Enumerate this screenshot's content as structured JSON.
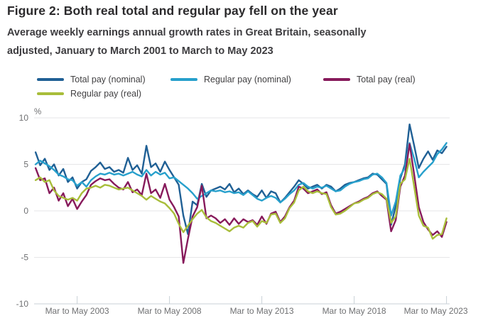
{
  "header": {
    "title": "Figure 2: Both real total and regular pay fell on the year",
    "subtitle_lines": [
      "Average weekly earnings annual growth rates in Great Britain, seasonally",
      "adjusted, January to March 2001 to March to May 2023"
    ]
  },
  "legend": {
    "items": [
      {
        "label": "Total pay (nominal)",
        "color": "#206095"
      },
      {
        "label": "Regular pay (nominal)",
        "color": "#27a0cc"
      },
      {
        "label": "Total pay (real)",
        "color": "#871a5b"
      },
      {
        "label": "Regular pay (real)",
        "color": "#a8bd3a"
      }
    ]
  },
  "chart_data": {
    "type": "line",
    "unit_label": "%",
    "grid": true,
    "legend_position": "top",
    "colors": {
      "gridline": "#e6e6e7",
      "axis": "#c9d1d7",
      "tick_text": "#6f7072"
    },
    "x_axis": {
      "tick_labels": [
        "Mar to May 2003",
        "Mar to May 2008",
        "Mar to May 2013",
        "Mar to May 2018",
        "Mar to May 2023"
      ],
      "tick_years": [
        2003.33,
        2008.33,
        2013.33,
        2018.33,
        2023.33
      ],
      "range": [
        2001.0,
        2023.5
      ]
    },
    "y_axis": {
      "ticks": [
        10,
        5,
        0,
        -5,
        -10
      ],
      "range": [
        -10,
        10
      ]
    },
    "x_start": 2001.08,
    "x_step": 0.25,
    "series": [
      {
        "name": "Total pay (nominal)",
        "color": "#206095",
        "values": [
          6.3,
          4.9,
          5.6,
          4.4,
          5.0,
          3.8,
          4.5,
          3.1,
          3.6,
          2.4,
          3.1,
          3.4,
          4.3,
          4.7,
          5.2,
          4.5,
          4.7,
          4.2,
          4.4,
          4.1,
          5.7,
          4.4,
          4.9,
          4.0,
          7.0,
          4.7,
          5.1,
          4.2,
          5.3,
          4.4,
          3.6,
          2.8,
          -0.5,
          -2.5,
          1.0,
          0.6,
          2.9,
          1.5,
          2.2,
          2.4,
          2.6,
          2.3,
          2.9,
          2.0,
          2.4,
          1.8,
          2.2,
          1.8,
          1.5,
          2.2,
          1.4,
          2.1,
          1.9,
          0.9,
          1.4,
          2.0,
          2.6,
          3.3,
          2.9,
          2.4,
          2.6,
          2.8,
          2.4,
          2.8,
          2.6,
          2.1,
          2.4,
          2.8,
          3.0,
          3.1,
          3.3,
          3.5,
          3.6,
          4.0,
          3.9,
          3.4,
          2.9,
          -1.5,
          0.5,
          3.5,
          5.0,
          9.3,
          7.0,
          4.6,
          5.6,
          6.4,
          5.5,
          6.5,
          6.2,
          6.9
        ]
      },
      {
        "name": "Regular pay (nominal)",
        "color": "#27a0cc",
        "values": [
          5.0,
          5.4,
          5.1,
          4.8,
          4.4,
          3.9,
          3.7,
          3.4,
          3.3,
          2.7,
          3.1,
          2.6,
          3.3,
          3.7,
          4.0,
          3.9,
          4.1,
          3.9,
          4.0,
          3.8,
          4.0,
          4.2,
          3.9,
          3.7,
          4.4,
          3.8,
          4.2,
          3.9,
          4.1,
          3.5,
          3.6,
          3.2,
          2.8,
          2.4,
          1.9,
          1.3,
          1.6,
          1.9,
          2.2,
          2.1,
          2.2,
          2.0,
          2.1,
          1.9,
          2.0,
          1.7,
          2.1,
          1.7,
          1.3,
          1.1,
          1.4,
          1.6,
          1.4,
          0.9,
          1.3,
          1.8,
          2.2,
          2.8,
          3.0,
          2.6,
          2.4,
          2.6,
          2.5,
          2.7,
          2.4,
          2.1,
          2.2,
          2.6,
          2.9,
          3.1,
          3.2,
          3.4,
          3.5,
          3.9,
          4.0,
          3.6,
          3.0,
          -0.5,
          1.0,
          3.8,
          4.6,
          7.3,
          5.6,
          3.6,
          4.2,
          4.7,
          5.2,
          6.1,
          6.6,
          7.3
        ]
      },
      {
        "name": "Total pay (real)",
        "color": "#871a5b",
        "values": [
          4.6,
          3.3,
          3.5,
          1.9,
          2.5,
          1.1,
          1.9,
          0.5,
          1.3,
          0.2,
          1.0,
          1.7,
          2.8,
          3.2,
          3.5,
          3.3,
          3.4,
          2.9,
          2.5,
          2.3,
          3.1,
          2.0,
          2.3,
          1.7,
          4.0,
          1.9,
          2.3,
          1.4,
          2.9,
          1.2,
          0.4,
          -0.6,
          -5.6,
          -3.0,
          -0.6,
          0.4,
          2.7,
          -0.8,
          -0.5,
          -0.8,
          -1.3,
          -0.9,
          -1.5,
          -0.8,
          -1.4,
          -0.9,
          -1.2,
          -1.0,
          -1.5,
          -0.6,
          -1.4,
          -0.3,
          -0.1,
          -1.2,
          -0.6,
          0.4,
          1.1,
          2.6,
          2.4,
          1.9,
          2.1,
          2.3,
          1.8,
          2.0,
          0.6,
          -0.3,
          -0.1,
          0.2,
          0.5,
          0.8,
          1.0,
          1.3,
          1.5,
          1.9,
          2.1,
          1.6,
          1.2,
          -2.2,
          -1.0,
          2.6,
          3.8,
          7.2,
          3.9,
          0.4,
          -1.2,
          -2.0,
          -2.6,
          -2.2,
          -2.8,
          -1.2
        ]
      },
      {
        "name": "Regular pay (real)",
        "color": "#a8bd3a",
        "values": [
          3.3,
          3.6,
          3.1,
          3.3,
          2.2,
          1.6,
          1.4,
          1.2,
          1.4,
          1.1,
          1.9,
          2.4,
          2.5,
          2.7,
          2.5,
          2.8,
          2.7,
          2.5,
          2.3,
          2.4,
          2.5,
          2.2,
          1.9,
          1.6,
          1.2,
          1.6,
          1.3,
          1.0,
          0.8,
          0.3,
          -0.3,
          -1.4,
          -2.3,
          -1.6,
          -0.9,
          -0.3,
          0.1,
          -0.7,
          -1.1,
          -1.3,
          -1.6,
          -1.9,
          -2.2,
          -1.8,
          -1.6,
          -1.8,
          -1.3,
          -1.1,
          -1.7,
          -1.1,
          -1.3,
          -0.4,
          -0.3,
          -1.3,
          -0.8,
          0.3,
          0.9,
          2.2,
          2.6,
          2.1,
          1.9,
          2.1,
          1.9,
          1.8,
          0.4,
          -0.4,
          -0.3,
          0.0,
          0.4,
          0.8,
          0.9,
          1.2,
          1.4,
          1.8,
          2.0,
          1.8,
          1.3,
          -1.3,
          -0.6,
          2.9,
          3.4,
          5.6,
          2.6,
          -0.5,
          -1.6,
          -1.8,
          -3.0,
          -2.6,
          -2.5,
          -0.8
        ]
      }
    ]
  }
}
